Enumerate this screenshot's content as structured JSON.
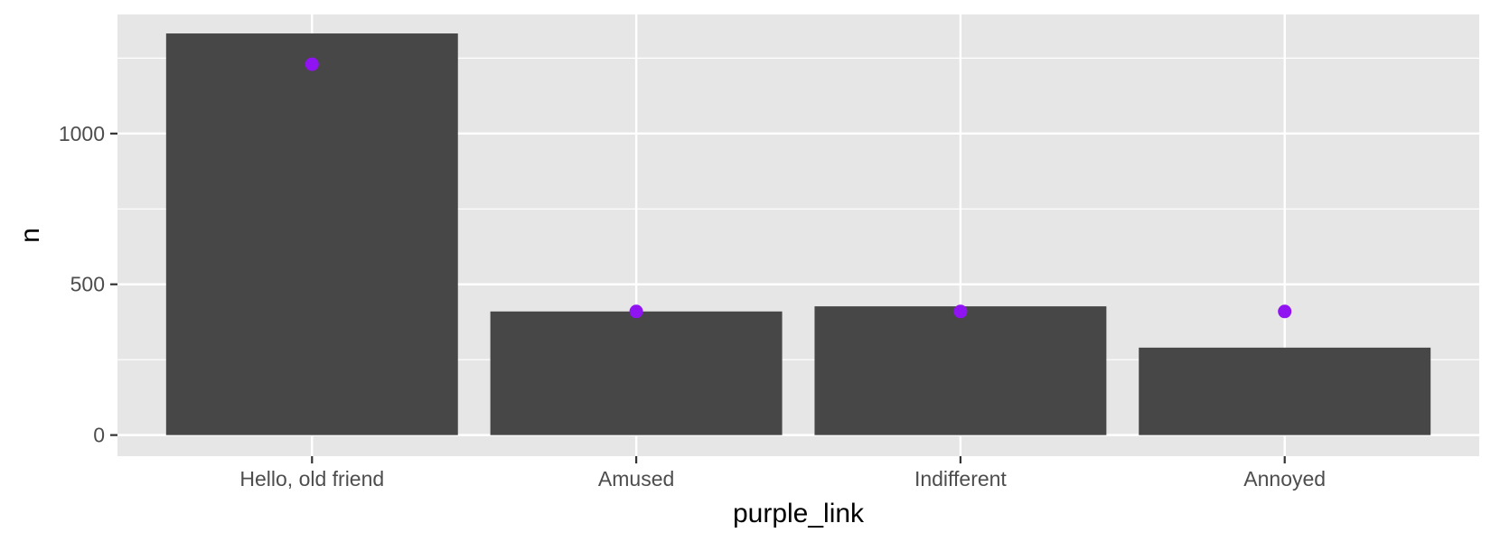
{
  "chart_data": {
    "type": "bar",
    "categories": [
      "Hello, old friend",
      "Amused",
      "Indifferent",
      "Annoyed"
    ],
    "series": [
      {
        "kind": "bar",
        "values": [
          1332,
          410,
          427,
          290
        ]
      },
      {
        "kind": "point",
        "values": [
          1230,
          410,
          410,
          410
        ]
      }
    ],
    "xlabel": "purple_link",
    "ylabel": "n",
    "ylim": [
      -70,
      1395
    ],
    "yticks": [
      0,
      500,
      1000
    ],
    "yminor": [
      250,
      750,
      1250
    ],
    "grid": true,
    "legend": "none",
    "colors": {
      "panel": "#e6e6e6",
      "grid": "#ffffff",
      "bar": "#474747",
      "point": "#9013f1",
      "tick": "#333333"
    }
  }
}
